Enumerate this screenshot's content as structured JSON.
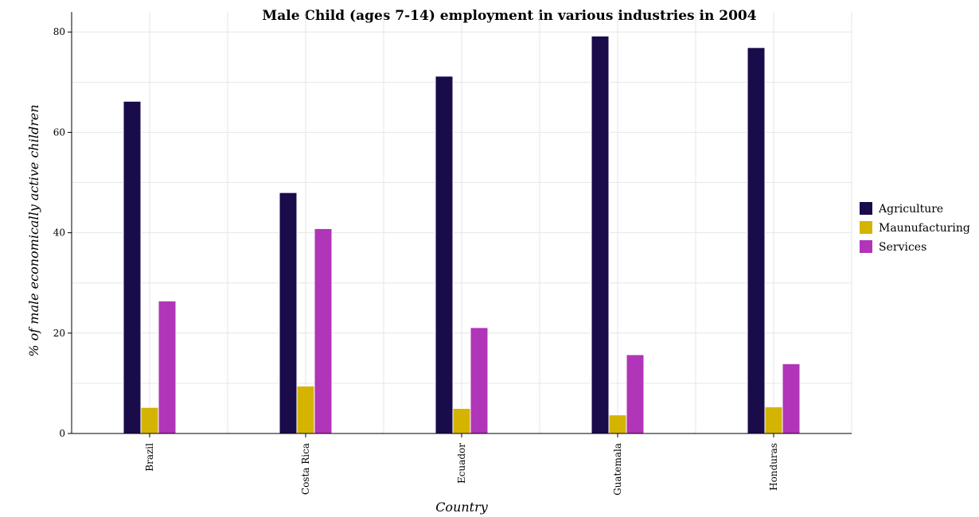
{
  "chart_data": {
    "type": "bar",
    "title": "Male Child (ages 7-14) employment in various industries in 2004",
    "xlabel": "Country",
    "ylabel": "% of male economically active children",
    "categories": [
      "Brazil",
      "Costa Rica",
      "Ecuador",
      "Guatemala",
      "Honduras"
    ],
    "series": [
      {
        "name": "Agriculture",
        "color": "#1a0b4a",
        "values": [
          66.2,
          48.0,
          71.2,
          79.2,
          76.9
        ]
      },
      {
        "name": "Maunufacturing",
        "color": "#d4b400",
        "values": [
          5.2,
          9.46,
          5.0,
          3.7,
          5.3
        ]
      },
      {
        "name": "Services",
        "color": "#b035b8",
        "values": [
          26.4,
          40.82,
          21.1,
          15.7,
          13.9
        ]
      }
    ],
    "yticks": [
      0,
      20,
      40,
      60,
      80
    ],
    "ylim": [
      0,
      84
    ],
    "grid": true,
    "legend_position": "right"
  }
}
